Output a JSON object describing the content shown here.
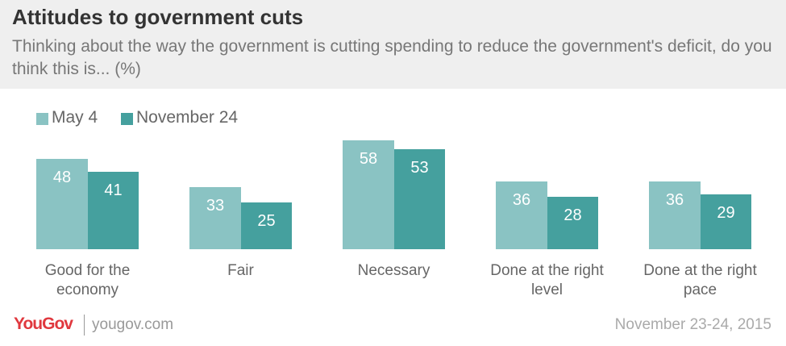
{
  "chart_data": {
    "type": "bar",
    "title": "Attitudes to government cuts",
    "subtitle": "Thinking about the way the government is cutting spending to reduce the government's deficit, do you think this is... (%)",
    "categories": [
      "Good for the economy",
      "Fair",
      "Necessary",
      "Done at the right level",
      "Done at the right pace"
    ],
    "series": [
      {
        "name": "May 4",
        "color": "#8ac3c3",
        "values": [
          48,
          33,
          58,
          36,
          36
        ]
      },
      {
        "name": "November 24",
        "color": "#45a09e",
        "values": [
          41,
          25,
          53,
          28,
          29
        ]
      }
    ],
    "ylim": [
      0,
      60
    ],
    "brand": "YouGov",
    "source": "yougov.com",
    "date": "November 23-24, 2015"
  }
}
